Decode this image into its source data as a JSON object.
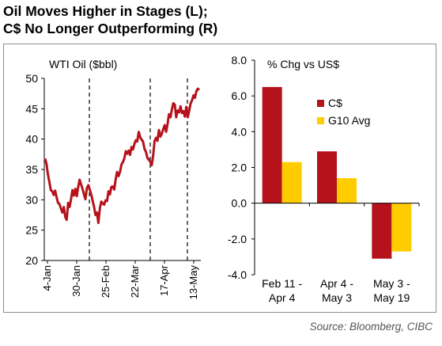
{
  "title_line1": "Oil Moves Higher in Stages (L);",
  "title_line2": "C$ No Longer Outperforming (R)",
  "source": "Source: Bloomberg, CIBC",
  "colors": {
    "oil": "#b5121b",
    "cad": "#b5121b",
    "g10": "#ffcc00",
    "frame": "#8c8c8c"
  },
  "chart_data": [
    {
      "type": "line",
      "title": "WTI Oil  ($bbl)",
      "ylim": [
        20,
        50
      ],
      "yticks": [
        "20",
        "25",
        "30",
        "35",
        "40",
        "45",
        "50"
      ],
      "xticks": [
        "4-Jan",
        "30-Jan",
        "25-Feb",
        "22-Mar",
        "17-Apr",
        "13-May"
      ],
      "stage_breaks": [
        "11-Feb",
        "4-Apr",
        "3-May"
      ],
      "series": [
        {
          "values": [
            36.8,
            35.9,
            34.2,
            32.9,
            31.6,
            31.4,
            30.8,
            31.5,
            30.4,
            29.5,
            29.3,
            28.6,
            27.9,
            28.8,
            27.2,
            26.7,
            29.5,
            28.8,
            30.1,
            31.6,
            30.7,
            31.8,
            30.6,
            32.1,
            33.3,
            32.5,
            31.8,
            30.9,
            30.1,
            31.9,
            32.4,
            31.7,
            30.9,
            29.9,
            28.8,
            27.5,
            27.9,
            26.2,
            28.6,
            29.7,
            29.4,
            29.2,
            29.9,
            29.8,
            31.4,
            30.9,
            32.1,
            32.2,
            31.7,
            33.4,
            34.6,
            33.9,
            34.6,
            35.8,
            36.2,
            36.8,
            38.0,
            37.6,
            38.1,
            37.4,
            38.7,
            38.3,
            39.2,
            39.8,
            39.6,
            41.2,
            40.3,
            39.9,
            39.6,
            38.4,
            37.9,
            36.9,
            36.6,
            36.3,
            35.7,
            37.3,
            39.7,
            40.2,
            39.7,
            41.5,
            40.4,
            40.9,
            41.6,
            42.3,
            41.2,
            42.5,
            44.1,
            43.6,
            44.9,
            45.9,
            45.7,
            43.6,
            44.7,
            44.4,
            45.4,
            44.3,
            44.6,
            43.7,
            45.3,
            43.6,
            44.6,
            45.9,
            46.4,
            47.2,
            46.8,
            47.9,
            48.3,
            48.1
          ]
        }
      ]
    },
    {
      "type": "bar",
      "title": "% Chg vs US$",
      "ylim": [
        -4,
        8
      ],
      "yticks": [
        "-4.0",
        "-2.0",
        "0.0",
        "2.0",
        "4.0",
        "6.0",
        "8.0"
      ],
      "categories": [
        [
          "Feb 11 -",
          "Apr 4"
        ],
        [
          "Apr 4 -",
          "May 3"
        ],
        [
          "May 3 -",
          "May 19"
        ]
      ],
      "series": [
        {
          "name": "C$",
          "values": [
            6.5,
            2.9,
            -3.1
          ]
        },
        {
          "name": "G10 Avg",
          "values": [
            2.3,
            1.4,
            -2.7
          ]
        }
      ]
    }
  ]
}
